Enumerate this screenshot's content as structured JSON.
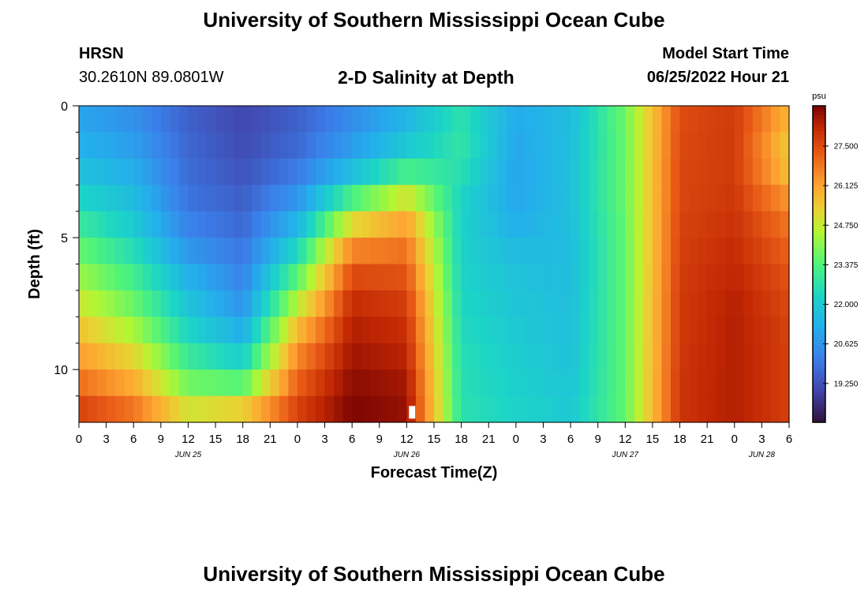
{
  "header": {
    "title": "University of Southern Mississippi Ocean Cube",
    "station_id": "HRSN",
    "station_coords": "30.2610N  89.0801W",
    "plot_title": "2-D Salinity at Depth",
    "model_start_label": "Model Start Time",
    "model_start_value": "06/25/2022 Hour 21"
  },
  "footer": {
    "title": "University of Southern Mississippi Ocean Cube"
  },
  "chart_data": {
    "type": "heatmap",
    "title": "2-D Salinity at Depth",
    "xlabel": "Forecast Time(Z)",
    "ylabel": "Depth (ft)",
    "x_hours": [
      0,
      6,
      12,
      18,
      24,
      30,
      36,
      42,
      48,
      54,
      60,
      66,
      72,
      78
    ],
    "x_range_hours": [
      0,
      78
    ],
    "x_ticks_hours": [
      0,
      3,
      6,
      9,
      12,
      15,
      18,
      21,
      24,
      27,
      30,
      33,
      36,
      39,
      42,
      45,
      48,
      51,
      54,
      57,
      60,
      63,
      66,
      69,
      72,
      75,
      78
    ],
    "x_tick_labels": [
      "0",
      "3",
      "6",
      "9",
      "12",
      "15",
      "18",
      "21",
      "0",
      "3",
      "6",
      "9",
      "12",
      "15",
      "18",
      "21",
      "0",
      "3",
      "6",
      "9",
      "12",
      "15",
      "18",
      "21",
      "0",
      "3",
      "6"
    ],
    "date_labels": [
      {
        "label": "JUN 25",
        "hour": 12
      },
      {
        "label": "JUN 26",
        "hour": 36
      },
      {
        "label": "JUN 27",
        "hour": 60
      },
      {
        "label": "JUN 28",
        "hour": 75
      }
    ],
    "y_range_ft": [
      0,
      12
    ],
    "y_ticks_ft": [
      0,
      5,
      10
    ],
    "y_minor_ticks_ft": [
      1,
      2,
      3,
      4,
      6,
      7,
      8,
      9,
      11
    ],
    "depths_ft": [
      0,
      1,
      2,
      3,
      4,
      5,
      6,
      7,
      8,
      9,
      10,
      11,
      12
    ],
    "salinity_psu": [
      [
        20.9,
        20.4,
        19.5,
        19.0,
        19.5,
        20.3,
        21.3,
        22.6,
        21.2,
        21.6,
        23.8,
        27.5,
        27.8,
        26.0
      ],
      [
        21.1,
        20.7,
        19.6,
        19.1,
        19.6,
        20.6,
        21.6,
        22.8,
        21.1,
        21.6,
        23.7,
        27.5,
        27.8,
        25.6
      ],
      [
        21.5,
        21.0,
        19.7,
        19.2,
        19.8,
        21.0,
        22.3,
        22.8,
        21.0,
        21.7,
        23.7,
        27.6,
        27.8,
        25.3
      ],
      [
        22.0,
        21.4,
        19.8,
        19.4,
        20.3,
        22.3,
        24.1,
        22.4,
        21.0,
        21.7,
        23.7,
        27.6,
        27.8,
        26.0
      ],
      [
        22.6,
        21.8,
        20.0,
        19.6,
        21.0,
        24.2,
        25.8,
        22.2,
        21.1,
        21.7,
        23.7,
        27.6,
        27.9,
        26.7
      ],
      [
        23.3,
        22.2,
        20.4,
        19.8,
        21.8,
        26.1,
        26.6,
        22.2,
        21.4,
        21.6,
        23.6,
        27.7,
        28.0,
        27.0
      ],
      [
        24.0,
        22.9,
        21.0,
        20.1,
        23.0,
        27.2,
        27.2,
        22.2,
        21.7,
        21.6,
        23.6,
        27.7,
        28.1,
        27.3
      ],
      [
        24.5,
        23.4,
        21.6,
        20.4,
        24.0,
        27.9,
        27.6,
        22.3,
        21.8,
        21.6,
        23.6,
        27.8,
        28.2,
        27.5
      ],
      [
        25.2,
        24.0,
        22.0,
        20.8,
        25.2,
        28.2,
        27.9,
        22.4,
        21.9,
        21.7,
        23.6,
        27.8,
        28.3,
        27.6
      ],
      [
        25.9,
        24.8,
        22.6,
        21.6,
        26.2,
        28.4,
        28.1,
        22.5,
        22.0,
        21.7,
        23.6,
        27.8,
        28.3,
        27.7
      ],
      [
        26.6,
        25.6,
        23.3,
        22.6,
        26.9,
        28.6,
        28.3,
        22.6,
        22.1,
        21.8,
        23.6,
        27.9,
        28.3,
        27.7
      ],
      [
        27.3,
        26.4,
        24.2,
        24.3,
        27.4,
        28.8,
        28.6,
        22.6,
        22.2,
        21.9,
        23.6,
        27.9,
        28.3,
        27.7
      ],
      [
        28.0,
        27.3,
        25.6,
        26.3,
        27.9,
        28.9,
        28.6,
        22.7,
        22.3,
        22.0,
        23.6,
        27.9,
        28.3,
        27.7
      ]
    ],
    "colorbar": {
      "unit_label": "psu",
      "range": [
        17.9,
        28.9
      ],
      "ticks": [
        19.25,
        20.625,
        22.0,
        23.375,
        24.75,
        26.125,
        27.5
      ],
      "tick_labels": [
        "19.250",
        "20.625",
        "22.000",
        "23.375",
        "24.750",
        "26.125",
        "27.500"
      ]
    },
    "marker": {
      "hour": 36.6,
      "depth_ft": 11.8,
      "color": "#ffffff"
    }
  }
}
